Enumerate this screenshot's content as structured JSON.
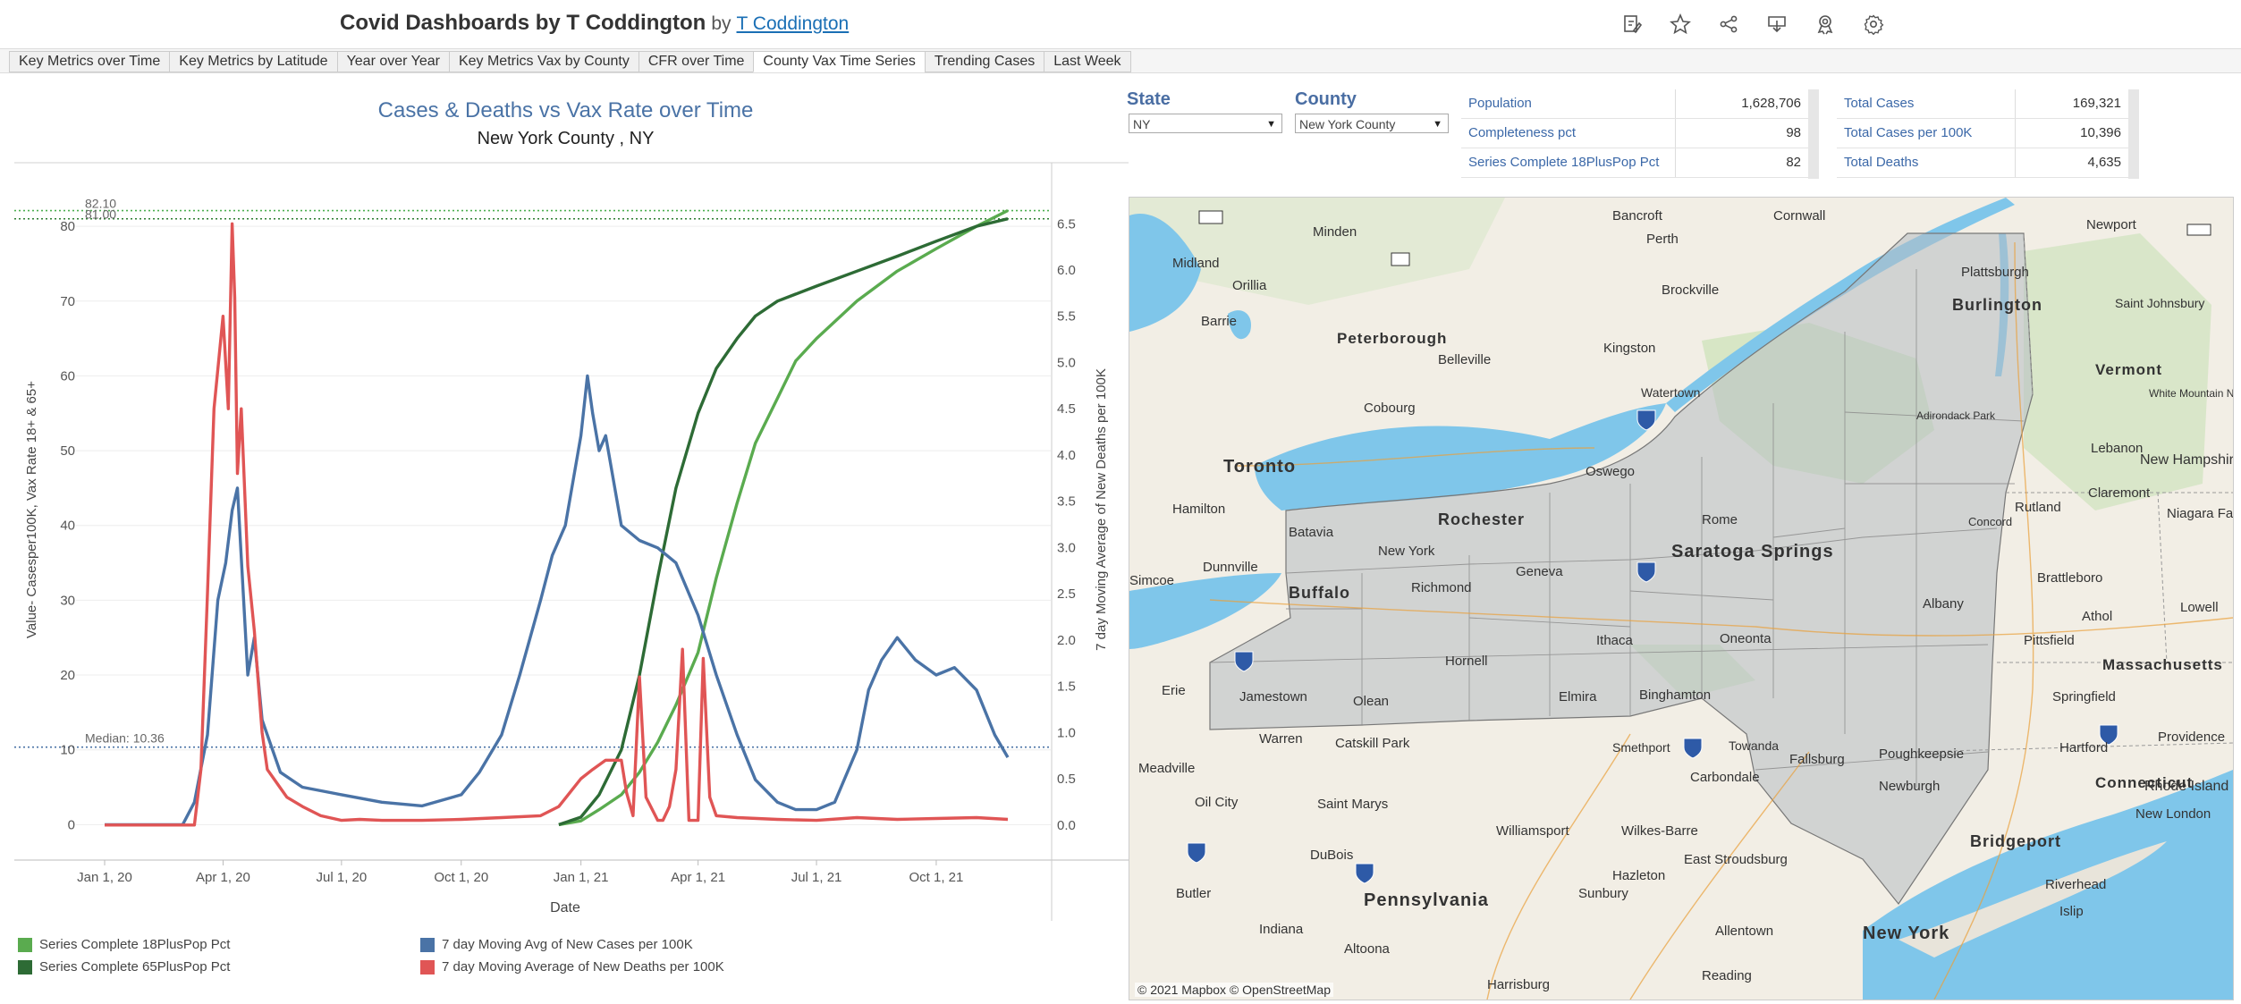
{
  "header": {
    "title": "Covid Dashboards by T Coddington",
    "by": "by",
    "author": "T Coddington"
  },
  "toolbar_icons": [
    "edit-icon",
    "star-icon",
    "share-icon",
    "download-icon",
    "subscribe-icon",
    "settings-icon"
  ],
  "tabs": [
    {
      "label": "Key Metrics over Time"
    },
    {
      "label": "Key Metrics by Latitude"
    },
    {
      "label": "Year over Year"
    },
    {
      "label": "Key Metrics Vax by County"
    },
    {
      "label": "CFR over Time"
    },
    {
      "label": "County Vax Time Series",
      "active": true
    },
    {
      "label": "Trending Cases"
    },
    {
      "label": "Last Week"
    }
  ],
  "filters": {
    "state_label": "State",
    "state_value": "NY",
    "county_label": "County",
    "county_value": "New York County"
  },
  "kpi_left": [
    {
      "label": "Population",
      "value": "1,628,706"
    },
    {
      "label": "Completeness pct",
      "value": "98"
    },
    {
      "label": "Series Complete 18PlusPop Pct",
      "value": "82"
    }
  ],
  "kpi_right": [
    {
      "label": "Total Cases",
      "value": "169,321"
    },
    {
      "label": "Total Cases per 100K",
      "value": "10,396"
    },
    {
      "label": "Total Deaths",
      "value": "4,635"
    }
  ],
  "chart_data": {
    "type": "line",
    "title": "Cases & Deaths vs Vax Rate over Time",
    "subtitle": "New York County ,  NY",
    "xlabel": "Date",
    "ylabel_left": "Value- Casesper100K, Vax Rate 18+ & 65+",
    "ylabel_right": "7 day Moving Average of New Deaths per 100K",
    "x_ticks": [
      "Jan 1, 20",
      "Apr 1, 20",
      "Jul 1, 20",
      "Oct 1, 20",
      "Jan 1, 21",
      "Apr 1, 21",
      "Jul 1, 21",
      "Oct 1, 21"
    ],
    "y_left_ticks": [
      0,
      10,
      20,
      30,
      40,
      50,
      60,
      70,
      80
    ],
    "y_right_ticks": [
      "0.0",
      "0.5",
      "1.0",
      "1.5",
      "2.0",
      "2.5",
      "3.0",
      "3.5",
      "4.0",
      "4.5",
      "5.0",
      "5.5",
      "6.0",
      "6.5"
    ],
    "ylim_left": [
      -4.5,
      88.5
    ],
    "ylim_right": [
      -0.36,
      7.16
    ],
    "xlim": [
      "2019-12-10",
      "2021-12-28"
    ],
    "reference_lines": [
      {
        "label": "82.10",
        "value": 82.1,
        "color": "#4caf50"
      },
      {
        "label": "81.00",
        "value": 81.0,
        "color": "#2e7d32"
      },
      {
        "label": "Median: 10.36",
        "value": 10.36,
        "color": "#4a73a6"
      }
    ],
    "series": [
      {
        "name": "Series Complete 18PlusPop Pct",
        "color": "#5aab4f",
        "axis": "left",
        "x": [
          "2020-12-15",
          "2021-01-01",
          "2021-01-15",
          "2021-02-01",
          "2021-02-15",
          "2021-03-01",
          "2021-03-15",
          "2021-04-01",
          "2021-04-15",
          "2021-05-01",
          "2021-05-15",
          "2021-06-01",
          "2021-06-15",
          "2021-07-01",
          "2021-08-01",
          "2021-09-01",
          "2021-10-01",
          "2021-11-01",
          "2021-11-25"
        ],
        "y": [
          0,
          0.5,
          2,
          4,
          7,
          11,
          16,
          23,
          33,
          43,
          51,
          57,
          62,
          65,
          70,
          74,
          77,
          80,
          82.1
        ]
      },
      {
        "name": "Series Complete 65PlusPop Pct",
        "color": "#2d6b35",
        "axis": "left",
        "x": [
          "2020-12-15",
          "2021-01-01",
          "2021-01-15",
          "2021-02-01",
          "2021-02-15",
          "2021-03-01",
          "2021-03-15",
          "2021-04-01",
          "2021-04-15",
          "2021-05-01",
          "2021-05-15",
          "2021-06-01",
          "2021-07-01",
          "2021-08-01",
          "2021-09-01",
          "2021-10-01",
          "2021-11-01",
          "2021-11-25"
        ],
        "y": [
          0,
          1,
          4,
          10,
          20,
          33,
          45,
          55,
          61,
          65,
          68,
          70,
          72,
          74,
          76,
          78,
          80,
          81
        ]
      },
      {
        "name": "7 day Moving Avg of New Cases per 100K",
        "color": "#4a73a6",
        "axis": "left",
        "x": [
          "2020-01-01",
          "2020-03-01",
          "2020-03-10",
          "2020-03-20",
          "2020-03-28",
          "2020-04-03",
          "2020-04-08",
          "2020-04-12",
          "2020-04-20",
          "2020-04-25",
          "2020-05-01",
          "2020-05-15",
          "2020-06-01",
          "2020-07-01",
          "2020-08-01",
          "2020-09-01",
          "2020-10-01",
          "2020-10-15",
          "2020-11-01",
          "2020-11-15",
          "2020-12-01",
          "2020-12-10",
          "2020-12-20",
          "2021-01-01",
          "2021-01-06",
          "2021-01-10",
          "2021-01-15",
          "2021-01-20",
          "2021-02-01",
          "2021-02-15",
          "2021-03-01",
          "2021-03-15",
          "2021-04-01",
          "2021-04-15",
          "2021-05-01",
          "2021-05-15",
          "2021-06-01",
          "2021-06-15",
          "2021-07-01",
          "2021-07-15",
          "2021-08-01",
          "2021-08-10",
          "2021-08-20",
          "2021-09-01",
          "2021-09-15",
          "2021-10-01",
          "2021-10-15",
          "2021-11-01",
          "2021-11-15",
          "2021-11-25"
        ],
        "y": [
          0,
          0,
          3,
          12,
          30,
          35,
          42,
          45,
          20,
          25,
          14,
          7,
          5,
          4,
          3,
          2.5,
          4,
          7,
          12,
          20,
          30,
          36,
          40,
          52,
          60,
          55,
          50,
          52,
          40,
          38,
          37,
          35,
          28,
          20,
          12,
          6,
          3,
          2,
          2,
          3,
          10,
          18,
          22,
          25,
          22,
          20,
          21,
          18,
          12,
          9
        ]
      },
      {
        "name": "7 day Moving Average of New Deaths per 100K",
        "color": "#e05555",
        "axis": "right",
        "x": [
          "2020-01-01",
          "2020-03-10",
          "2020-03-15",
          "2020-03-20",
          "2020-03-25",
          "2020-04-01",
          "2020-04-05",
          "2020-04-08",
          "2020-04-10",
          "2020-04-12",
          "2020-04-15",
          "2020-04-20",
          "2020-04-25",
          "2020-05-01",
          "2020-05-05",
          "2020-05-10",
          "2020-05-15",
          "2020-05-20",
          "2020-06-01",
          "2020-06-15",
          "2020-07-01",
          "2020-07-15",
          "2020-08-01",
          "2020-09-01",
          "2020-10-01",
          "2020-11-01",
          "2020-12-01",
          "2020-12-15",
          "2021-01-01",
          "2021-01-10",
          "2021-01-20",
          "2021-02-01",
          "2021-02-05",
          "2021-02-10",
          "2021-02-15",
          "2021-02-20",
          "2021-03-01",
          "2021-03-05",
          "2021-03-10",
          "2021-03-15",
          "2021-03-20",
          "2021-03-25",
          "2021-04-01",
          "2021-04-05",
          "2021-04-10",
          "2021-04-15",
          "2021-05-01",
          "2021-06-01",
          "2021-07-01",
          "2021-08-01",
          "2021-09-01",
          "2021-10-01",
          "2021-11-01",
          "2021-11-25"
        ],
        "y": [
          0,
          0,
          0.6,
          2.5,
          4.5,
          5.5,
          4.5,
          6.5,
          5.7,
          3.8,
          4.5,
          2.8,
          2.1,
          1.0,
          0.6,
          0.5,
          0.4,
          0.3,
          0.2,
          0.1,
          0.05,
          0.06,
          0.05,
          0.05,
          0.06,
          0.08,
          0.1,
          0.2,
          0.5,
          0.6,
          0.7,
          0.7,
          0.35,
          0.1,
          1.6,
          0.3,
          0.05,
          0.05,
          0.2,
          0.6,
          1.9,
          0.05,
          0.05,
          1.8,
          0.3,
          0.1,
          0.08,
          0.06,
          0.05,
          0.08,
          0.06,
          0.07,
          0.08,
          0.06
        ]
      }
    ],
    "legend_position": "bottom"
  },
  "map": {
    "attribution": "© 2021 Mapbox  © OpenStreetMap",
    "labels": [
      {
        "text": "Bancroft"
      },
      {
        "text": "Cornwall"
      },
      {
        "text": "Newport"
      },
      {
        "text": "Minden"
      },
      {
        "text": "Midland"
      },
      {
        "text": "Perth"
      },
      {
        "text": "Plattsburgh"
      },
      {
        "text": "Orillia"
      },
      {
        "text": "Brockville"
      },
      {
        "text": "Burlington"
      },
      {
        "text": "Saint Johnsbury"
      },
      {
        "text": "Barrie"
      },
      {
        "text": "Peterborough"
      },
      {
        "text": "Kingston"
      },
      {
        "text": "Belleville"
      },
      {
        "text": "Vermont"
      },
      {
        "text": "Cobourg"
      },
      {
        "text": "Watertown"
      },
      {
        "text": "Adirondack Park"
      },
      {
        "text": "White Mountain National Forest"
      },
      {
        "text": "Toronto"
      },
      {
        "text": "Oswego"
      },
      {
        "text": "Lebanon"
      },
      {
        "text": "New Hampshire"
      },
      {
        "text": "Hamilton"
      },
      {
        "text": "Rochester"
      },
      {
        "text": "Rome"
      },
      {
        "text": "Rutland"
      },
      {
        "text": "Claremont"
      },
      {
        "text": "Niagara Falls"
      },
      {
        "text": "Batavia"
      },
      {
        "text": "New York"
      },
      {
        "text": "Saratoga Springs"
      },
      {
        "text": "Concord"
      },
      {
        "text": "Dunnville"
      },
      {
        "text": "Richmond"
      },
      {
        "text": "Geneva"
      },
      {
        "text": "Brattleboro"
      },
      {
        "text": "Simcoe"
      },
      {
        "text": "Buffalo"
      },
      {
        "text": "Albany"
      },
      {
        "text": "Athol"
      },
      {
        "text": "Lowell"
      },
      {
        "text": "Ithaca"
      },
      {
        "text": "Oneonta"
      },
      {
        "text": "Pittsfield"
      },
      {
        "text": "Hornell"
      },
      {
        "text": "Massachusetts"
      },
      {
        "text": "Erie"
      },
      {
        "text": "Jamestown"
      },
      {
        "text": "Olean"
      },
      {
        "text": "Elmira"
      },
      {
        "text": "Binghamton"
      },
      {
        "text": "Springfield"
      },
      {
        "text": "Warren"
      },
      {
        "text": "Catskill Park"
      },
      {
        "text": "Smethport"
      },
      {
        "text": "Towanda"
      },
      {
        "text": "Fallsburg"
      },
      {
        "text": "Poughkeepsie"
      },
      {
        "text": "Hartford"
      },
      {
        "text": "Providence"
      },
      {
        "text": "Meadville"
      },
      {
        "text": "Carbondale"
      },
      {
        "text": "Connecticut"
      },
      {
        "text": "Rhode Island"
      },
      {
        "text": "Newburgh"
      },
      {
        "text": "Oil City"
      },
      {
        "text": "Saint Marys"
      },
      {
        "text": "New London"
      },
      {
        "text": "Williamsport"
      },
      {
        "text": "Wilkes-Barre"
      },
      {
        "text": "Bridgeport"
      },
      {
        "text": "DuBois"
      },
      {
        "text": "Hazleton"
      },
      {
        "text": "East Stroudsburg"
      },
      {
        "text": "Riverhead"
      },
      {
        "text": "Butler"
      },
      {
        "text": "Sunbury"
      },
      {
        "text": "Islip"
      },
      {
        "text": "Pennsylvania"
      },
      {
        "text": "Indiana"
      },
      {
        "text": "Allentown"
      },
      {
        "text": "New York"
      },
      {
        "text": "Altoona"
      },
      {
        "text": "Reading"
      },
      {
        "text": "Harrisburg"
      }
    ]
  }
}
